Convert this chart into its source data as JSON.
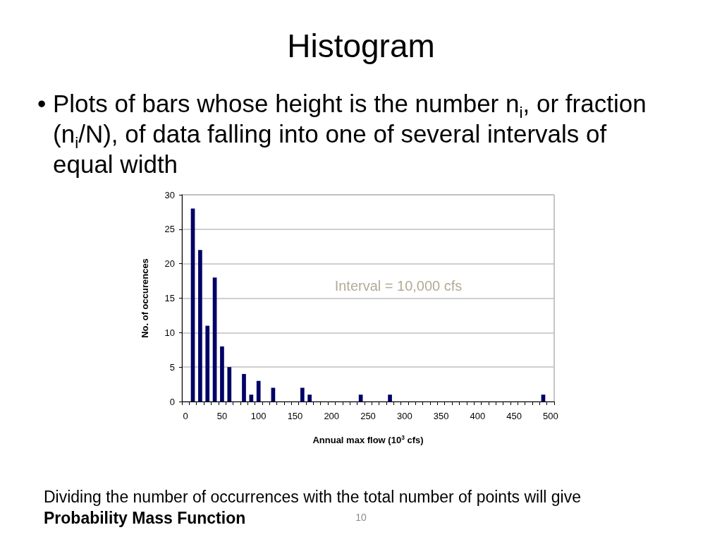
{
  "chart_data": {
    "type": "bar",
    "title": "Histogram",
    "subtitle": "• Plots of bars whose height is the number n$_{i}$, or fraction (n$_{i}$/N), of data falling into one of several intervals of equal width",
    "xlabel": "Annual max flow (10$^{3}$ cfs)",
    "ylabel": "No. of occurences",
    "annotations": [
      "Interval = 10,000 cfs",
      "Dividing the number of occurrences with the total number of points will give",
      "Probability Mass Function",
      "10"
    ],
    "categories": [
      "0",
      null,
      null,
      null,
      null,
      "50",
      null,
      null,
      null,
      null,
      "100",
      null,
      null,
      null,
      null,
      "150",
      null,
      null,
      null,
      null,
      "200",
      null,
      null,
      null,
      null,
      "250",
      null,
      null,
      null,
      null,
      "300",
      null,
      null,
      null,
      null,
      "350",
      null,
      null,
      null,
      null,
      "400",
      null,
      null,
      null,
      null,
      "450",
      null,
      null,
      null,
      null,
      "500"
    ],
    "values": [
      0,
      28,
      22,
      11,
      18,
      8,
      5,
      0,
      4,
      1,
      3,
      0,
      2,
      0,
      0,
      0,
      2,
      1,
      0,
      0,
      0,
      0,
      0,
      0,
      1,
      0,
      0,
      0,
      1,
      0,
      0,
      0,
      0,
      0,
      0,
      0,
      0,
      0,
      0,
      0,
      0,
      0,
      0,
      0,
      0,
      0,
      0,
      0,
      0,
      1,
      0
    ],
    "color": "#000066",
    "ylim": [
      0,
      30
    ],
    "yticks": [
      0,
      5,
      10,
      15,
      20,
      25,
      30
    ],
    "grid": "y"
  }
}
